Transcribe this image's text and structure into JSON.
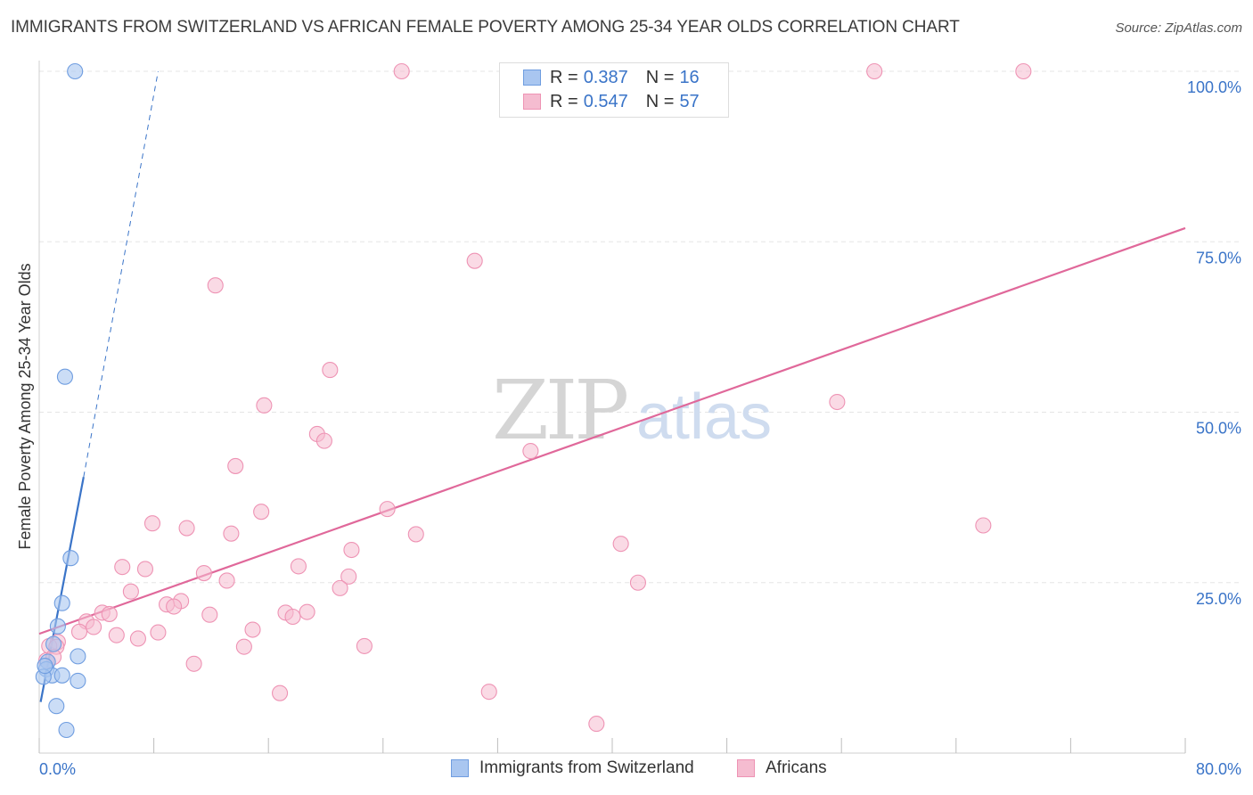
{
  "title": "IMMIGRANTS FROM SWITZERLAND VS AFRICAN FEMALE POVERTY AMONG 25-34 YEAR OLDS CORRELATION CHART",
  "source": "Source: ZipAtlas.com",
  "watermark": {
    "zip": "ZIP",
    "atlas": "atlas"
  },
  "colors": {
    "blue": "#3a74c8",
    "blue_fill": "#a9c6f0",
    "blue_stroke": "#6f9de0",
    "pink": "#e0689a",
    "pink_fill": "#f5bcd0",
    "pink_stroke": "#ee93b4",
    "tick_label": "#3a74c8",
    "grid": "#e5e5e5"
  },
  "legend": {
    "rows": [
      {
        "r_label": "R =",
        "r_value": "0.387",
        "n_label": "N =",
        "n_value": "16"
      },
      {
        "r_label": "R =",
        "r_value": "0.547",
        "n_label": "N =",
        "n_value": "57"
      }
    ]
  },
  "bottom_legend": [
    "Immigrants from Switzerland",
    "Africans"
  ],
  "chart_data": {
    "type": "scatter",
    "title": "IMMIGRANTS FROM SWITZERLAND VS AFRICAN FEMALE POVERTY AMONG 25-34 YEAR OLDS CORRELATION CHART",
    "xlabel": "",
    "ylabel": "Female Poverty Among 25-34 Year Olds",
    "xlim": [
      0,
      80
    ],
    "ylim": [
      0,
      100
    ],
    "x_tick_labels": [
      "0.0%",
      "80.0%"
    ],
    "y_ticks": [
      25,
      50,
      75,
      100
    ],
    "y_tick_labels": [
      "25.0%",
      "50.0%",
      "75.0%",
      "100.0%"
    ],
    "grid": true,
    "legend_position": "top-center",
    "series": [
      {
        "name": "Immigrants from Switzerland",
        "R": 0.387,
        "N": 16,
        "trend": {
          "x": [
            0.1,
            3.1
          ],
          "y": [
            7.5,
            40.5
          ],
          "dashed_extension_to": [
            8.3,
            100
          ]
        },
        "points": [
          [
            2.5,
            100
          ],
          [
            1.8,
            55.2
          ],
          [
            2.2,
            28.6
          ],
          [
            1.6,
            22.0
          ],
          [
            1.3,
            18.6
          ],
          [
            1.0,
            16.0
          ],
          [
            2.7,
            14.2
          ],
          [
            0.6,
            13.4
          ],
          [
            0.5,
            12.3
          ],
          [
            0.9,
            11.4
          ],
          [
            1.6,
            11.4
          ],
          [
            0.3,
            11.2
          ],
          [
            2.7,
            10.6
          ],
          [
            1.2,
            6.9
          ],
          [
            1.9,
            3.4
          ],
          [
            0.4,
            12.8
          ]
        ]
      },
      {
        "name": "Africans",
        "R": 0.547,
        "N": 57,
        "trend": {
          "x": [
            0,
            80
          ],
          "y": [
            17.5,
            77.0
          ]
        },
        "points": [
          [
            25.3,
            100
          ],
          [
            58.3,
            100
          ],
          [
            68.7,
            100
          ],
          [
            30.4,
            72.2
          ],
          [
            12.3,
            68.6
          ],
          [
            20.3,
            56.2
          ],
          [
            15.7,
            51.0
          ],
          [
            55.7,
            51.5
          ],
          [
            19.4,
            46.8
          ],
          [
            19.9,
            45.8
          ],
          [
            34.3,
            44.3
          ],
          [
            13.7,
            42.1
          ],
          [
            15.5,
            35.4
          ],
          [
            24.3,
            35.8
          ],
          [
            7.9,
            33.7
          ],
          [
            65.9,
            33.4
          ],
          [
            10.3,
            33.0
          ],
          [
            13.4,
            32.2
          ],
          [
            26.3,
            32.1
          ],
          [
            40.6,
            30.7
          ],
          [
            21.8,
            29.8
          ],
          [
            5.8,
            27.3
          ],
          [
            7.4,
            27.0
          ],
          [
            18.1,
            27.4
          ],
          [
            11.5,
            26.4
          ],
          [
            21.6,
            25.9
          ],
          [
            13.1,
            25.3
          ],
          [
            41.8,
            25.0
          ],
          [
            21.0,
            24.2
          ],
          [
            6.4,
            23.7
          ],
          [
            9.9,
            22.3
          ],
          [
            8.9,
            21.8
          ],
          [
            9.4,
            21.5
          ],
          [
            4.4,
            20.6
          ],
          [
            4.9,
            20.4
          ],
          [
            11.9,
            20.3
          ],
          [
            17.2,
            20.6
          ],
          [
            18.7,
            20.7
          ],
          [
            17.7,
            20.0
          ],
          [
            3.3,
            19.3
          ],
          [
            3.8,
            18.5
          ],
          [
            14.9,
            18.1
          ],
          [
            8.3,
            17.7
          ],
          [
            2.8,
            17.8
          ],
          [
            5.4,
            17.3
          ],
          [
            6.9,
            16.8
          ],
          [
            14.3,
            15.6
          ],
          [
            22.7,
            15.7
          ],
          [
            1.3,
            16.3
          ],
          [
            0.7,
            15.7
          ],
          [
            1.2,
            15.6
          ],
          [
            10.8,
            13.1
          ],
          [
            0.5,
            13.6
          ],
          [
            1.0,
            14.1
          ],
          [
            16.8,
            8.8
          ],
          [
            31.4,
            9.0
          ],
          [
            38.9,
            4.3
          ]
        ]
      }
    ]
  }
}
